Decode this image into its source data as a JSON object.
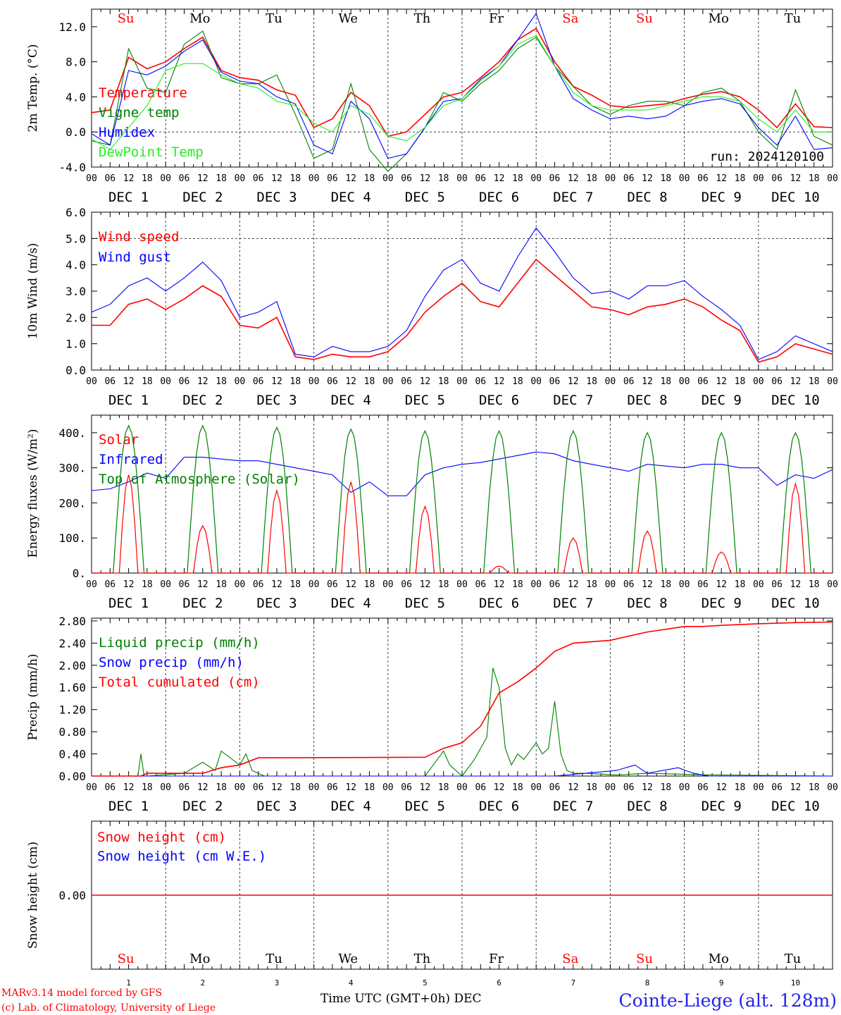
{
  "footer": {
    "model_line": "MARv3.14 model forced by GFS",
    "lab_line": "(c) Lab. of Climatology, University of Liege",
    "time_label": "Time UTC (GMT+0h) DEC",
    "location": "Cointe-Liege (alt. 128m)"
  },
  "run_label": "run: 2024120100",
  "colors": {
    "red": "#ff0000",
    "green": "#008000",
    "blue": "#0000ff",
    "lightgreen": "#22ee22",
    "grid": "#444444"
  },
  "days": {
    "weekday_labels": [
      "Su",
      "Mo",
      "Tu",
      "We",
      "Th",
      "Fr",
      "Sa",
      "Su",
      "Mo",
      "Tu"
    ],
    "weekday_colors": [
      "red",
      "black",
      "black",
      "black",
      "black",
      "black",
      "red",
      "red",
      "black",
      "black"
    ],
    "date_labels": [
      "DEC  1",
      "DEC  2",
      "DEC  3",
      "DEC  4",
      "DEC  5",
      "DEC  6",
      "DEC  7",
      "DEC  8",
      "DEC  9",
      "DEC 10"
    ],
    "hour_ticks": [
      "00",
      "06",
      "12",
      "18"
    ],
    "bottom_numbers": [
      "1",
      "2",
      "3",
      "4",
      "5",
      "6",
      "7",
      "8",
      "9",
      "10"
    ]
  },
  "chart_data": [
    {
      "type": "line",
      "ylabel": "2m Temp. (°C)",
      "ylim": [
        -4,
        14
      ],
      "yticks": [
        "-4.0",
        "0.0",
        "4.0",
        "8.0",
        "12.0"
      ],
      "ytick_values": [
        -4,
        0,
        4,
        8,
        12
      ],
      "ref_line": 0,
      "x_unit": "hours since DEC 1 00 UTC",
      "series": [
        {
          "name": "Temperature",
          "color": "red",
          "x": [
            0,
            6,
            12,
            18,
            24,
            30,
            36,
            42,
            48,
            54,
            60,
            66,
            72,
            78,
            84,
            90,
            96,
            102,
            108,
            114,
            120,
            126,
            132,
            138,
            144,
            150,
            156,
            162,
            168,
            174,
            180,
            186,
            192,
            198,
            204,
            210,
            216,
            222,
            228,
            234,
            240
          ],
          "values": [
            2.2,
            2.5,
            8.5,
            7.2,
            8.0,
            9.5,
            10.8,
            7.0,
            6.2,
            5.9,
            4.8,
            4.2,
            0.5,
            1.5,
            4.5,
            3.0,
            -0.5,
            0.0,
            2.0,
            4.0,
            4.5,
            6.2,
            8.0,
            10.5,
            11.8,
            8.0,
            5.2,
            4.2,
            3.0,
            2.8,
            3.0,
            3.2,
            3.8,
            4.3,
            4.6,
            4.0,
            2.5,
            0.5,
            3.2,
            0.6,
            0.5
          ]
        },
        {
          "name": "Vigne temp",
          "color": "green",
          "x": [
            0,
            6,
            12,
            18,
            24,
            30,
            36,
            42,
            48,
            54,
            60,
            66,
            72,
            78,
            84,
            90,
            96,
            102,
            108,
            114,
            120,
            126,
            132,
            138,
            144,
            150,
            156,
            162,
            168,
            174,
            180,
            186,
            192,
            198,
            204,
            210,
            216,
            222,
            228,
            234,
            240
          ],
          "values": [
            -1.0,
            -1.5,
            9.5,
            5.0,
            4.5,
            10.0,
            11.5,
            6.2,
            5.5,
            5.5,
            6.5,
            2.0,
            -3.0,
            -2.0,
            5.5,
            -2.0,
            -4.5,
            -2.5,
            0.5,
            4.5,
            3.5,
            5.5,
            7.0,
            9.5,
            10.8,
            7.5,
            5.2,
            3.0,
            2.0,
            3.0,
            3.5,
            3.5,
            3.0,
            4.5,
            5.0,
            3.5,
            0.0,
            -2.0,
            4.8,
            -0.5,
            -1.5
          ]
        },
        {
          "name": "Humidex",
          "color": "blue",
          "x": [
            0,
            6,
            12,
            18,
            24,
            30,
            36,
            42,
            48,
            54,
            60,
            66,
            72,
            78,
            84,
            90,
            96,
            102,
            108,
            114,
            120,
            126,
            132,
            138,
            144,
            150,
            156,
            162,
            168,
            174,
            180,
            186,
            192,
            198,
            204,
            210,
            216,
            222,
            228,
            234,
            240
          ],
          "values": [
            -0.2,
            -1.5,
            7.0,
            6.5,
            7.5,
            9.2,
            10.5,
            6.8,
            5.8,
            5.5,
            4.0,
            3.2,
            -1.5,
            -2.5,
            3.5,
            1.5,
            -3.0,
            -2.5,
            0.5,
            3.5,
            3.8,
            6.0,
            7.5,
            10.5,
            13.5,
            7.5,
            3.8,
            2.5,
            1.5,
            1.8,
            1.5,
            1.8,
            3.0,
            3.5,
            3.8,
            3.2,
            0.5,
            -1.5,
            1.8,
            -2.0,
            -1.8
          ]
        },
        {
          "name": "DewPoint Temp",
          "color": "lightgreen",
          "x": [
            0,
            6,
            12,
            18,
            24,
            30,
            36,
            42,
            48,
            54,
            60,
            66,
            72,
            78,
            84,
            90,
            96,
            102,
            108,
            114,
            120,
            126,
            132,
            138,
            144,
            150,
            156,
            162,
            168,
            174,
            180,
            186,
            192,
            198,
            204,
            210,
            216,
            222,
            228,
            234,
            240
          ],
          "values": [
            -0.8,
            -2.0,
            0.5,
            3.0,
            7.0,
            7.8,
            7.8,
            6.5,
            5.5,
            5.0,
            3.5,
            3.0,
            1.0,
            0.0,
            3.0,
            2.0,
            -0.5,
            -1.0,
            0.5,
            3.0,
            3.8,
            5.8,
            7.5,
            10.0,
            11.0,
            7.5,
            4.5,
            3.0,
            2.5,
            2.5,
            2.5,
            3.0,
            3.5,
            4.0,
            4.0,
            3.5,
            1.5,
            0.0,
            2.5,
            0.0,
            0.0
          ]
        }
      ]
    },
    {
      "type": "line",
      "ylabel": "10m Wind (m/s)",
      "ylim": [
        0,
        6
      ],
      "yticks": [
        "0.0",
        "1.0",
        "2.0",
        "3.0",
        "4.0",
        "5.0",
        "6.0"
      ],
      "ytick_values": [
        0,
        1,
        2,
        3,
        4,
        5,
        6
      ],
      "ref_line": 5,
      "x_unit": "hours since DEC 1 00 UTC",
      "series": [
        {
          "name": "Wind speed",
          "color": "red",
          "x": [
            0,
            6,
            12,
            18,
            24,
            30,
            36,
            42,
            48,
            54,
            60,
            66,
            72,
            78,
            84,
            90,
            96,
            102,
            108,
            114,
            120,
            126,
            132,
            138,
            144,
            150,
            156,
            162,
            168,
            174,
            180,
            186,
            192,
            198,
            204,
            210,
            216,
            222,
            228,
            234,
            240
          ],
          "values": [
            1.7,
            1.7,
            2.5,
            2.7,
            2.3,
            2.7,
            3.2,
            2.8,
            1.7,
            1.6,
            2.0,
            0.5,
            0.4,
            0.6,
            0.5,
            0.5,
            0.7,
            1.3,
            2.2,
            2.8,
            3.3,
            2.6,
            2.4,
            3.3,
            4.2,
            3.6,
            3.0,
            2.4,
            2.3,
            2.1,
            2.4,
            2.5,
            2.7,
            2.4,
            1.9,
            1.5,
            0.3,
            0.5,
            1.0,
            0.8,
            0.6
          ]
        },
        {
          "name": "Wind gust",
          "color": "blue",
          "x": [
            0,
            6,
            12,
            18,
            24,
            30,
            36,
            42,
            48,
            54,
            60,
            66,
            72,
            78,
            84,
            90,
            96,
            102,
            108,
            114,
            120,
            126,
            132,
            138,
            144,
            150,
            156,
            162,
            168,
            174,
            180,
            186,
            192,
            198,
            204,
            210,
            216,
            222,
            228,
            234,
            240
          ],
          "values": [
            2.2,
            2.5,
            3.2,
            3.5,
            3.0,
            3.5,
            4.1,
            3.4,
            2.0,
            2.2,
            2.6,
            0.6,
            0.5,
            0.9,
            0.7,
            0.7,
            0.9,
            1.5,
            2.8,
            3.8,
            4.2,
            3.3,
            3.0,
            4.3,
            5.4,
            4.5,
            3.5,
            2.9,
            3.0,
            2.7,
            3.2,
            3.2,
            3.4,
            2.8,
            2.3,
            1.7,
            0.4,
            0.7,
            1.3,
            1.0,
            0.7
          ]
        }
      ]
    },
    {
      "type": "line",
      "ylabel": "Energy fluxes (W/m²)",
      "ylim": [
        0,
        450
      ],
      "yticks": [
        "0.",
        "100.",
        "200.",
        "300.",
        "400."
      ],
      "ytick_values": [
        0,
        100,
        200,
        300,
        400
      ],
      "x_unit": "hours since DEC 1 00 UTC",
      "toa_peaks": [
        420,
        420,
        415,
        410,
        405,
        405,
        405,
        400,
        400,
        400
      ],
      "solar_peaks": [
        280,
        135,
        235,
        260,
        190,
        20,
        100,
        120,
        60,
        255
      ],
      "series": [
        {
          "name": "Solar",
          "color": "red"
        },
        {
          "name": "Infrared",
          "color": "blue",
          "x": [
            0,
            6,
            12,
            18,
            24,
            30,
            36,
            42,
            48,
            54,
            60,
            66,
            72,
            78,
            84,
            90,
            96,
            102,
            108,
            114,
            120,
            126,
            132,
            138,
            144,
            150,
            156,
            162,
            168,
            174,
            180,
            186,
            192,
            198,
            204,
            210,
            216,
            222,
            228,
            234,
            240
          ],
          "values": [
            235,
            240,
            260,
            285,
            270,
            330,
            330,
            325,
            320,
            320,
            310,
            300,
            290,
            280,
            230,
            260,
            220,
            220,
            280,
            300,
            310,
            315,
            325,
            335,
            345,
            340,
            320,
            310,
            300,
            290,
            310,
            305,
            300,
            310,
            310,
            300,
            300,
            250,
            280,
            270,
            295
          ]
        },
        {
          "name": "Top of Atmosphere (Solar)",
          "color": "green"
        }
      ]
    },
    {
      "type": "line",
      "ylabel": "Precip (mm/h)",
      "ylim": [
        0,
        2.85
      ],
      "yticks": [
        "0.00",
        "0.40",
        "0.80",
        "1.20",
        "1.60",
        "2.00",
        "2.40",
        "2.80"
      ],
      "ytick_values": [
        0,
        0.4,
        0.8,
        1.2,
        1.6,
        2.0,
        2.4,
        2.8
      ],
      "x_unit": "hours since DEC 1 00 UTC",
      "series": [
        {
          "name": "Liquid precip (mm/h)",
          "color": "green",
          "x": [
            0,
            15,
            16,
            17,
            18,
            30,
            36,
            40,
            42,
            48,
            50,
            52,
            54,
            56,
            60,
            66,
            108,
            112,
            114,
            116,
            120,
            124,
            128,
            130,
            132,
            134,
            136,
            138,
            140,
            144,
            146,
            148,
            150,
            152,
            154,
            156,
            160,
            170,
            180,
            200,
            240
          ],
          "values": [
            0,
            0,
            0.4,
            0,
            0,
            0.05,
            0.25,
            0.1,
            0.45,
            0.2,
            0.4,
            0.1,
            0.05,
            0,
            0,
            0,
            0,
            0.3,
            0.45,
            0.2,
            0,
            0.3,
            0.7,
            1.95,
            1.6,
            0.5,
            0.2,
            0.4,
            0.3,
            0.6,
            0.4,
            0.5,
            1.35,
            0.4,
            0.1,
            0.05,
            0.05,
            0.02,
            0.05,
            0.02,
            0
          ]
        },
        {
          "name": "Snow precip (mm/h)",
          "color": "blue",
          "x": [
            0,
            150,
            160,
            170,
            176,
            180,
            190,
            195,
            200,
            240
          ],
          "values": [
            0,
            0,
            0.05,
            0.1,
            0.2,
            0.05,
            0.15,
            0.05,
            0,
            0
          ]
        },
        {
          "name": "Total cumulated (cm)",
          "color": "red",
          "x": [
            0,
            16,
            18,
            36,
            42,
            48,
            54,
            60,
            108,
            114,
            120,
            126,
            132,
            138,
            144,
            150,
            156,
            168,
            180,
            192,
            198,
            204,
            216,
            228,
            240
          ],
          "values": [
            0,
            0,
            0.05,
            0.05,
            0.15,
            0.2,
            0.33,
            0.33,
            0.34,
            0.5,
            0.6,
            0.9,
            1.5,
            1.7,
            1.95,
            2.25,
            2.4,
            2.45,
            2.6,
            2.7,
            2.7,
            2.72,
            2.75,
            2.77,
            2.78
          ]
        }
      ]
    },
    {
      "type": "line",
      "ylabel": "Snow height (cm)",
      "yticks": [
        "0.00"
      ],
      "ytick_values": [
        0
      ],
      "ylim": [
        -1,
        1
      ],
      "series": [
        {
          "name": "Snow height (cm)",
          "color": "red",
          "x": [
            0,
            240
          ],
          "values": [
            0,
            0
          ]
        },
        {
          "name": "Snow height (cm W.E.)",
          "color": "blue"
        }
      ]
    }
  ]
}
